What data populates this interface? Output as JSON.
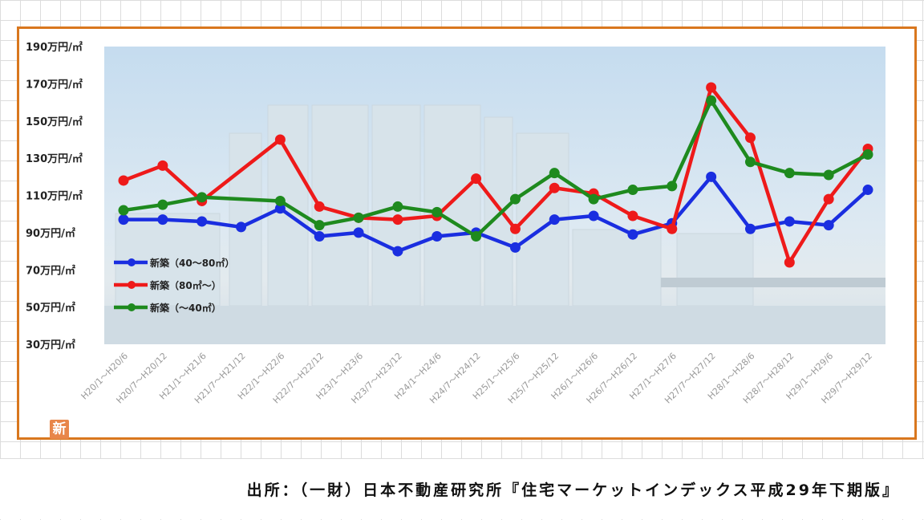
{
  "chart_data": {
    "type": "line",
    "y_ticks": [
      "190万円/㎡",
      "170万円/㎡",
      "150万円/㎡",
      "130万円/㎡",
      "110万円/㎡",
      "90万円/㎡",
      "70万円/㎡",
      "50万円/㎡",
      "30万円/㎡"
    ],
    "ylim": [
      30,
      190
    ],
    "categories": [
      "H20/1～H20/6",
      "H20/7～H20/12",
      "H21/1～H21/6",
      "H21/7～H21/12",
      "H22/1～H22/6",
      "H22/7～H22/12",
      "H23/1～H23/6",
      "H23/7～H23/12",
      "H24/1～H24/6",
      "H24/7～H24/12",
      "H25/1～H25/6",
      "H25/7～H25/12",
      "H26/1～H26/6",
      "H26/7～H26/12",
      "H27/1～H27/6",
      "H27/7～H27/12",
      "H28/1～H28/6",
      "H28/7～H28/12",
      "H29/1～H29/6",
      "H29/7～H29/12"
    ],
    "series": [
      {
        "name": "新築（40～80㎡）",
        "color": "#1a2ee0",
        "values": [
          97,
          97,
          96,
          93,
          103,
          88,
          90,
          80,
          88,
          90,
          82,
          97,
          99,
          89,
          95,
          120,
          92,
          96,
          94,
          113
        ]
      },
      {
        "name": "新築（80㎡～）",
        "color": "#ee1a1a",
        "values": [
          118,
          126,
          107,
          null,
          140,
          104,
          98,
          97,
          99,
          119,
          92,
          114,
          111,
          99,
          92,
          168,
          141,
          74,
          108,
          135
        ]
      },
      {
        "name": "新築（～40㎡）",
        "color": "#1e8a1e",
        "values": [
          102,
          105,
          109,
          null,
          107,
          94,
          98,
          104,
          101,
          88,
          108,
          122,
          108,
          113,
          115,
          161,
          128,
          122,
          121,
          132
        ]
      }
    ],
    "legend_position": "bottom-left",
    "grid": false
  },
  "logo_text": "新",
  "source_text": "出所：（一財）日本不動産研究所『住宅マーケットインデックス平成29年下期版』"
}
